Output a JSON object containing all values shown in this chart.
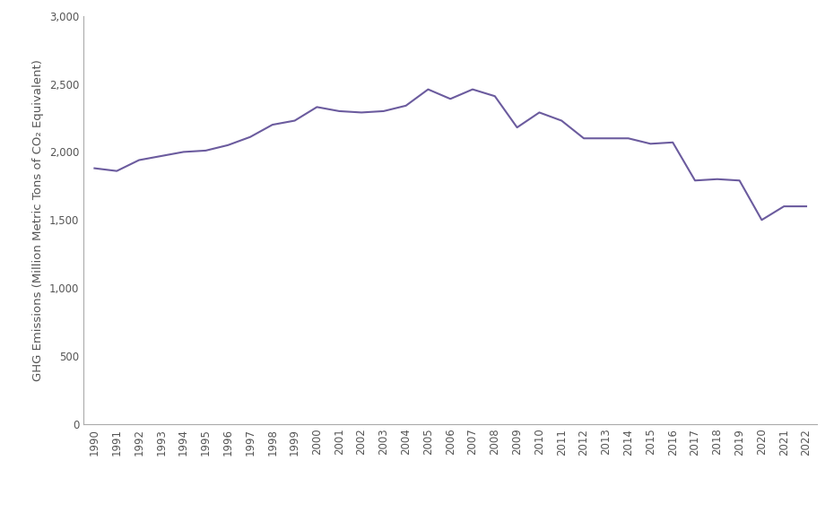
{
  "years": [
    1990,
    1991,
    1992,
    1993,
    1994,
    1995,
    1996,
    1997,
    1998,
    1999,
    2000,
    2001,
    2002,
    2003,
    2004,
    2005,
    2006,
    2007,
    2008,
    2009,
    2010,
    2011,
    2012,
    2013,
    2014,
    2015,
    2016,
    2017,
    2018,
    2019,
    2020,
    2021,
    2022
  ],
  "values": [
    1880,
    1860,
    1940,
    1970,
    2000,
    2010,
    2050,
    2110,
    2200,
    2230,
    2330,
    2300,
    2290,
    2300,
    2340,
    2460,
    2390,
    2460,
    2410,
    2180,
    2290,
    2230,
    2100,
    2100,
    2100,
    2060,
    2070,
    1790,
    1800,
    1790,
    1500,
    1600,
    1600
  ],
  "line_color": "#6B5B9E",
  "line_width": 1.5,
  "ylabel": "GHG Emissions (Million Metric Tons of CO₂ Equivalent)",
  "ylim": [
    0,
    3000
  ],
  "yticks": [
    0,
    500,
    1000,
    1500,
    2000,
    2500,
    3000
  ],
  "ytick_labels": [
    "0",
    "500",
    "1,000",
    "1,500",
    "2,000",
    "2,500",
    "3,000"
  ],
  "background_color": "#ffffff",
  "spine_color": "#aaaaaa",
  "tick_color": "#555555",
  "tick_fontsize": 8.5,
  "label_fontsize": 9.5
}
